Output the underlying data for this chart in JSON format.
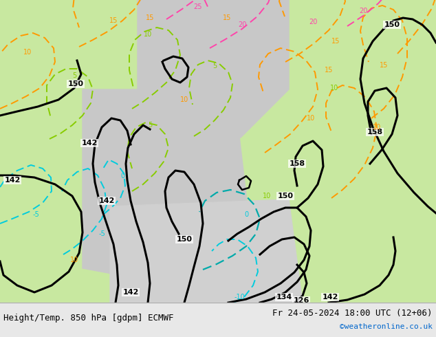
{
  "fig_width": 6.34,
  "fig_height": 4.9,
  "dpi": 100,
  "bg_color": "#f0f0f0",
  "land_color": "#c8e8a0",
  "ocean_color": "#d0d0d0",
  "bottom_bar_color": "#e8e8e8",
  "bottom_text_left": "Height/Temp. 850 hPa [gdpm] ECMWF",
  "bottom_text_right": "Fr 24-05-2024 18:00 UTC (12+06)",
  "bottom_text_url": "©weatheronline.co.uk",
  "bottom_text_color": "#000000",
  "url_color": "#0066cc",
  "text_font_size": 9,
  "geop_color": "#000000",
  "geop_linewidth": 2.2,
  "temp_cyan_color": "#00ccdd",
  "temp_green_color": "#88cc00",
  "temp_orange_color": "#ff9900",
  "temp_pink_color": "#ff44aa",
  "temp_linewidth": 1.4
}
